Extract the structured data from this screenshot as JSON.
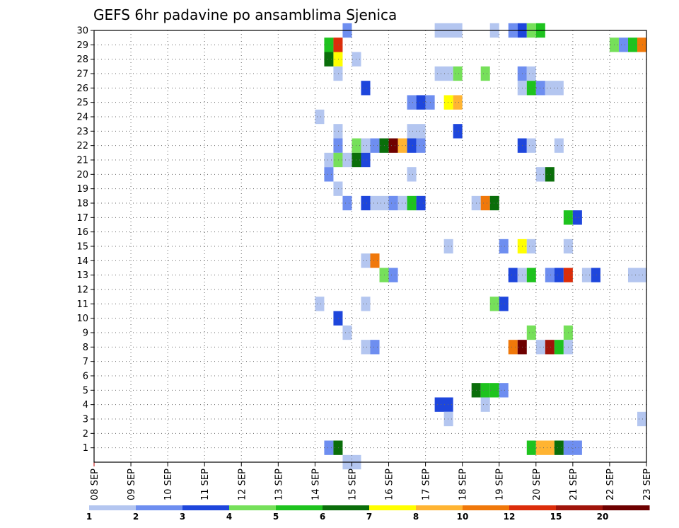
{
  "chart_data": {
    "type": "heatmap",
    "title": "GEFS 6hr padavine po ansamblima Sjenica",
    "xlabel": "",
    "ylabel": "",
    "x_ticks": [
      "08 SEP",
      "09 SEP",
      "10 SEP",
      "11 SEP",
      "12 SEP",
      "13 SEP",
      "14 SEP",
      "15 SEP",
      "16 SEP",
      "17 SEP",
      "18 SEP",
      "19 SEP",
      "20 SEP",
      "21 SEP",
      "22 SEP",
      "23 SEP"
    ],
    "y_ticks": [
      "1",
      "2",
      "3",
      "4",
      "5",
      "6",
      "7",
      "8",
      "9",
      "10",
      "11",
      "12",
      "13",
      "14",
      "15",
      "16",
      "17",
      "18",
      "19",
      "20",
      "21",
      "22",
      "23",
      "24",
      "25",
      "26",
      "27",
      "28",
      "29",
      "30"
    ],
    "xlim_days": [
      0,
      15
    ],
    "ylim_members": [
      0,
      30
    ],
    "grid": true,
    "legend": {
      "position": "bottom",
      "labels": [
        "1",
        "2",
        "3",
        "4",
        "5",
        "6",
        "7",
        "8",
        "10",
        "12",
        "15",
        "20"
      ],
      "colors": [
        "#b4c6f0",
        "#6e8ef0",
        "#1e46dc",
        "#76e05a",
        "#1ec31e",
        "#0a6e0a",
        "#ffff00",
        "#ffb432",
        "#f0780a",
        "#dc2d0a",
        "#a0140a",
        "#6e0000"
      ]
    },
    "colors": {
      "c1": "#b4c6f0",
      "c2": "#6e8ef0",
      "c3": "#1e46dc",
      "c4": "#76e05a",
      "c5": "#1ec31e",
      "c6": "#0a6e0a",
      "c7": "#ffff00",
      "c8": "#ffb432",
      "c9": "#f0780a",
      "c10": "#dc2d0a",
      "c11": "#a0140a",
      "c12": "#6e0000"
    },
    "cells": [
      {
        "t": [
          27
        ],
        "m": 30,
        "c": "c2"
      },
      {
        "t": [
          37,
          39
        ],
        "m": 30,
        "c": "c1"
      },
      {
        "t": [
          43
        ],
        "m": 30,
        "c": "c1"
      },
      {
        "t": [
          45
        ],
        "m": 30,
        "c": "c2"
      },
      {
        "t": [
          46
        ],
        "m": 30,
        "c": "c3"
      },
      {
        "t": [
          47
        ],
        "m": 30,
        "c": "c4"
      },
      {
        "t": [
          48
        ],
        "m": 30,
        "c": "c5"
      },
      {
        "t": [
          25
        ],
        "m": 29,
        "c": "c5"
      },
      {
        "t": [
          26
        ],
        "m": 29,
        "c": "c10"
      },
      {
        "t": [
          56
        ],
        "m": 29,
        "c": "c4"
      },
      {
        "t": [
          57
        ],
        "m": 29,
        "c": "c2"
      },
      {
        "t": [
          58
        ],
        "m": 29,
        "c": "c5"
      },
      {
        "t": [
          59
        ],
        "m": 29,
        "c": "c9"
      },
      {
        "t": [
          25
        ],
        "m": 28,
        "c": "c6"
      },
      {
        "t": [
          26
        ],
        "m": 28,
        "c": "c7"
      },
      {
        "t": [
          28
        ],
        "m": 28,
        "c": "c1"
      },
      {
        "t": [
          26
        ],
        "m": 27,
        "c": "c1"
      },
      {
        "t": [
          37,
          38
        ],
        "m": 27,
        "c": "c1"
      },
      {
        "t": [
          39
        ],
        "m": 27,
        "c": "c4"
      },
      {
        "t": [
          42
        ],
        "m": 27,
        "c": "c4"
      },
      {
        "t": [
          46
        ],
        "m": 27,
        "c": "c2"
      },
      {
        "t": [
          47
        ],
        "m": 27,
        "c": "c1"
      },
      {
        "t": [
          29
        ],
        "m": 26,
        "c": "c3"
      },
      {
        "t": [
          46
        ],
        "m": 26,
        "c": "c1"
      },
      {
        "t": [
          47
        ],
        "m": 26,
        "c": "c5"
      },
      {
        "t": [
          48
        ],
        "m": 26,
        "c": "c2"
      },
      {
        "t": [
          49,
          50
        ],
        "m": 26,
        "c": "c1"
      },
      {
        "t": [
          34
        ],
        "m": 25,
        "c": "c2"
      },
      {
        "t": [
          35
        ],
        "m": 25,
        "c": "c3"
      },
      {
        "t": [
          36
        ],
        "m": 25,
        "c": "c2"
      },
      {
        "t": [
          38
        ],
        "m": 25,
        "c": "c7"
      },
      {
        "t": [
          39
        ],
        "m": 25,
        "c": "c8"
      },
      {
        "t": [
          24
        ],
        "m": 24,
        "c": "c1"
      },
      {
        "t": [
          26
        ],
        "m": 23,
        "c": "c1"
      },
      {
        "t": [
          34,
          35
        ],
        "m": 23,
        "c": "c1"
      },
      {
        "t": [
          39
        ],
        "m": 23,
        "c": "c3"
      },
      {
        "t": [
          26
        ],
        "m": 22,
        "c": "c2"
      },
      {
        "t": [
          28
        ],
        "m": 22,
        "c": "c4"
      },
      {
        "t": [
          29
        ],
        "m": 22,
        "c": "c1"
      },
      {
        "t": [
          30
        ],
        "m": 22,
        "c": "c2"
      },
      {
        "t": [
          31
        ],
        "m": 22,
        "c": "c6"
      },
      {
        "t": [
          32
        ],
        "m": 22,
        "c": "c12"
      },
      {
        "t": [
          33
        ],
        "m": 22,
        "c": "c8"
      },
      {
        "t": [
          34
        ],
        "m": 22,
        "c": "c3"
      },
      {
        "t": [
          35
        ],
        "m": 22,
        "c": "c2"
      },
      {
        "t": [
          46
        ],
        "m": 22,
        "c": "c3"
      },
      {
        "t": [
          47
        ],
        "m": 22,
        "c": "c1"
      },
      {
        "t": [
          50
        ],
        "m": 22,
        "c": "c1"
      },
      {
        "t": [
          25
        ],
        "m": 21,
        "c": "c1"
      },
      {
        "t": [
          26
        ],
        "m": 21,
        "c": "c4"
      },
      {
        "t": [
          27
        ],
        "m": 21,
        "c": "c1"
      },
      {
        "t": [
          28
        ],
        "m": 21,
        "c": "c6"
      },
      {
        "t": [
          29
        ],
        "m": 21,
        "c": "c3"
      },
      {
        "t": [
          25
        ],
        "m": 20,
        "c": "c2"
      },
      {
        "t": [
          34
        ],
        "m": 20,
        "c": "c1"
      },
      {
        "t": [
          48
        ],
        "m": 20,
        "c": "c1"
      },
      {
        "t": [
          49
        ],
        "m": 20,
        "c": "c6"
      },
      {
        "t": [
          26
        ],
        "m": 19,
        "c": "c1"
      },
      {
        "t": [
          27
        ],
        "m": 18,
        "c": "c2"
      },
      {
        "t": [
          29
        ],
        "m": 18,
        "c": "c3"
      },
      {
        "t": [
          30,
          31
        ],
        "m": 18,
        "c": "c1"
      },
      {
        "t": [
          32
        ],
        "m": 18,
        "c": "c2"
      },
      {
        "t": [
          33
        ],
        "m": 18,
        "c": "c1"
      },
      {
        "t": [
          34
        ],
        "m": 18,
        "c": "c5"
      },
      {
        "t": [
          35
        ],
        "m": 18,
        "c": "c3"
      },
      {
        "t": [
          41
        ],
        "m": 18,
        "c": "c1"
      },
      {
        "t": [
          42
        ],
        "m": 18,
        "c": "c9"
      },
      {
        "t": [
          43
        ],
        "m": 18,
        "c": "c6"
      },
      {
        "t": [
          51
        ],
        "m": 17,
        "c": "c5"
      },
      {
        "t": [
          52
        ],
        "m": 17,
        "c": "c3"
      },
      {
        "t": [
          38
        ],
        "m": 15,
        "c": "c1"
      },
      {
        "t": [
          44
        ],
        "m": 15,
        "c": "c2"
      },
      {
        "t": [
          46
        ],
        "m": 15,
        "c": "c7"
      },
      {
        "t": [
          47
        ],
        "m": 15,
        "c": "c1"
      },
      {
        "t": [
          51
        ],
        "m": 15,
        "c": "c1"
      },
      {
        "t": [
          29
        ],
        "m": 14,
        "c": "c1"
      },
      {
        "t": [
          30
        ],
        "m": 14,
        "c": "c9"
      },
      {
        "t": [
          31
        ],
        "m": 13,
        "c": "c4"
      },
      {
        "t": [
          32
        ],
        "m": 13,
        "c": "c2"
      },
      {
        "t": [
          45
        ],
        "m": 13,
        "c": "c3"
      },
      {
        "t": [
          46
        ],
        "m": 13,
        "c": "c1"
      },
      {
        "t": [
          47
        ],
        "m": 13,
        "c": "c5"
      },
      {
        "t": [
          49
        ],
        "m": 13,
        "c": "c2"
      },
      {
        "t": [
          50
        ],
        "m": 13,
        "c": "c3"
      },
      {
        "t": [
          51
        ],
        "m": 13,
        "c": "c10"
      },
      {
        "t": [
          53
        ],
        "m": 13,
        "c": "c1"
      },
      {
        "t": [
          54
        ],
        "m": 13,
        "c": "c3"
      },
      {
        "t": [
          58,
          59
        ],
        "m": 13,
        "c": "c1"
      },
      {
        "t": [
          24
        ],
        "m": 11,
        "c": "c1"
      },
      {
        "t": [
          29
        ],
        "m": 11,
        "c": "c1"
      },
      {
        "t": [
          43
        ],
        "m": 11,
        "c": "c4"
      },
      {
        "t": [
          44
        ],
        "m": 11,
        "c": "c3"
      },
      {
        "t": [
          26
        ],
        "m": 10,
        "c": "c3"
      },
      {
        "t": [
          27
        ],
        "m": 9,
        "c": "c1"
      },
      {
        "t": [
          47
        ],
        "m": 9,
        "c": "c4"
      },
      {
        "t": [
          51
        ],
        "m": 9,
        "c": "c4"
      },
      {
        "t": [
          29
        ],
        "m": 8,
        "c": "c1"
      },
      {
        "t": [
          30
        ],
        "m": 8,
        "c": "c2"
      },
      {
        "t": [
          45
        ],
        "m": 8,
        "c": "c9"
      },
      {
        "t": [
          46
        ],
        "m": 8,
        "c": "c12"
      },
      {
        "t": [
          48
        ],
        "m": 8,
        "c": "c1"
      },
      {
        "t": [
          49
        ],
        "m": 8,
        "c": "c11"
      },
      {
        "t": [
          50
        ],
        "m": 8,
        "c": "c5"
      },
      {
        "t": [
          51
        ],
        "m": 8,
        "c": "c1"
      },
      {
        "t": [
          41
        ],
        "m": 5,
        "c": "c6"
      },
      {
        "t": [
          42
        ],
        "m": 5,
        "c": "c5"
      },
      {
        "t": [
          43
        ],
        "m": 5,
        "c": "c5"
      },
      {
        "t": [
          44
        ],
        "m": 5,
        "c": "c2"
      },
      {
        "t": [
          37,
          38
        ],
        "m": 4,
        "c": "c3"
      },
      {
        "t": [
          42
        ],
        "m": 4,
        "c": "c1"
      },
      {
        "t": [
          38
        ],
        "m": 3,
        "c": "c1"
      },
      {
        "t": [
          59
        ],
        "m": 3,
        "c": "c1"
      },
      {
        "t": [
          25
        ],
        "m": 1,
        "c": "c2"
      },
      {
        "t": [
          26
        ],
        "m": 1,
        "c": "c6"
      },
      {
        "t": [
          47
        ],
        "m": 1,
        "c": "c5"
      },
      {
        "t": [
          48,
          49
        ],
        "m": 1,
        "c": "c8"
      },
      {
        "t": [
          50
        ],
        "m": 1,
        "c": "c6"
      },
      {
        "t": [
          51,
          52
        ],
        "m": 1,
        "c": "c2"
      },
      {
        "t": [
          27,
          28
        ],
        "m": 0,
        "c": "c1"
      }
    ]
  }
}
